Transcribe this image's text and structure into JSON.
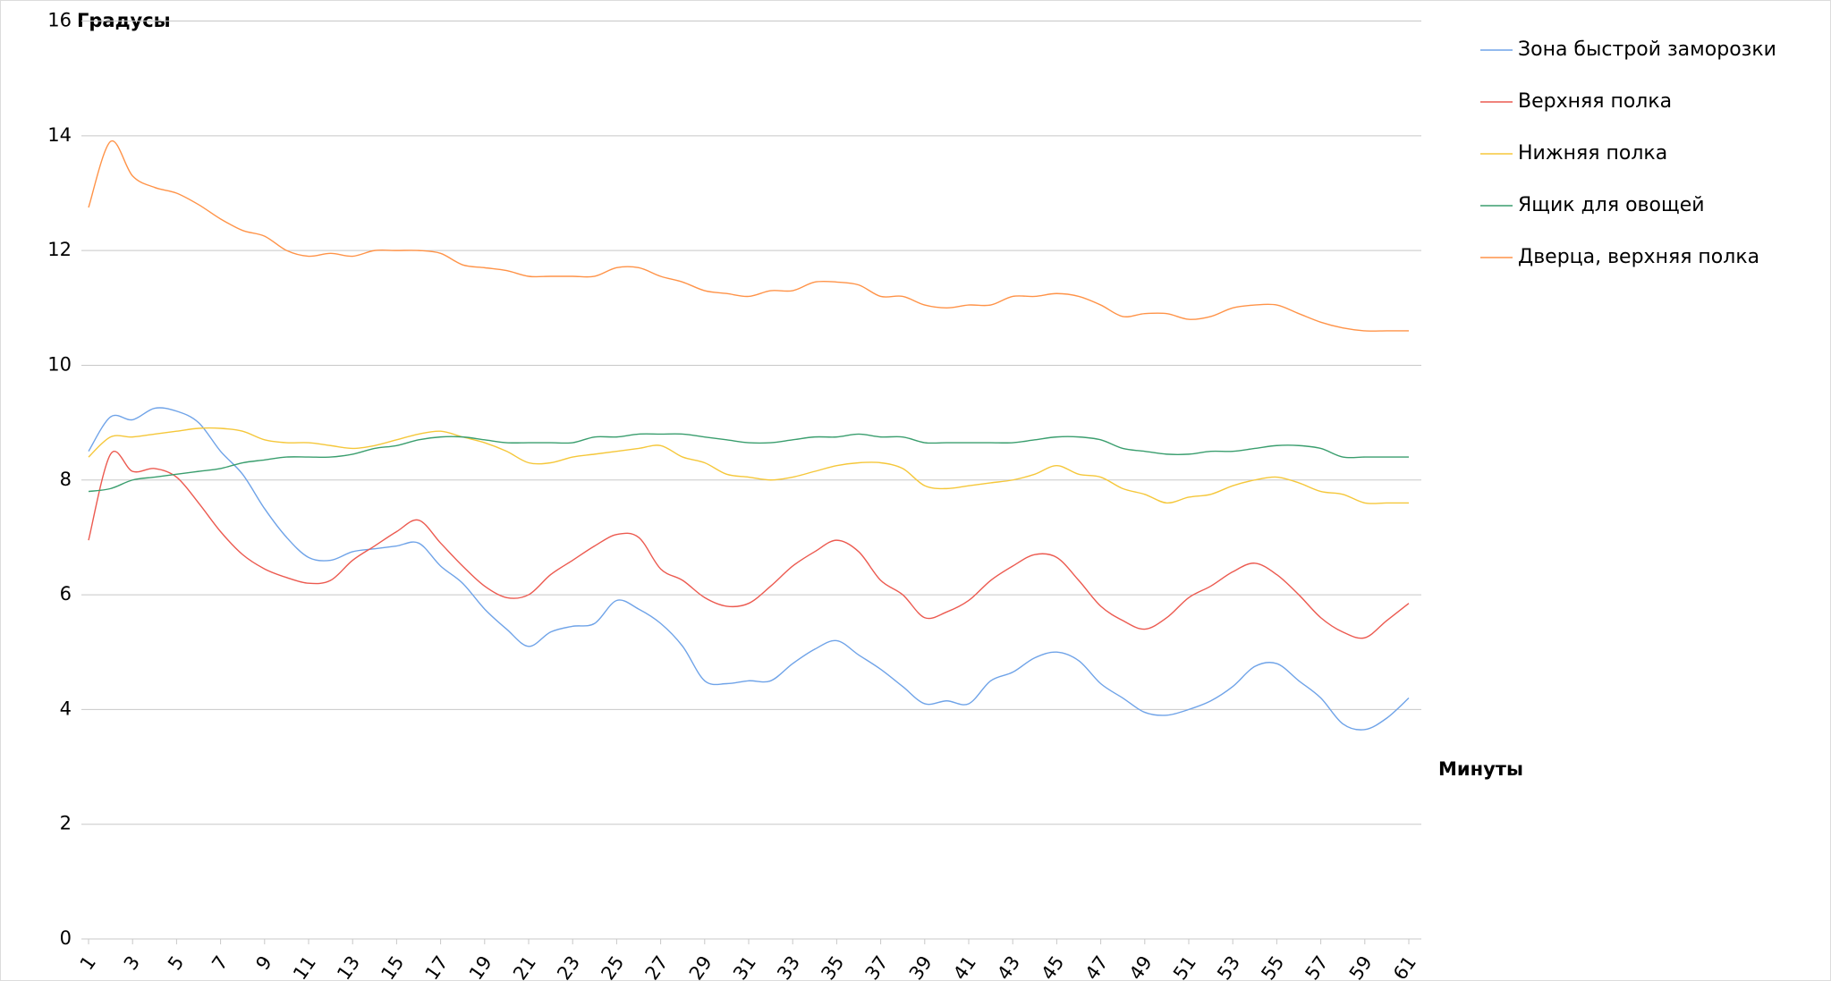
{
  "chart_data": {
    "type": "line",
    "y_label": "Градусы",
    "x_label": "Минуты",
    "categories": [
      1,
      null,
      3,
      null,
      5,
      null,
      7,
      null,
      9,
      null,
      11,
      null,
      13,
      null,
      15,
      null,
      17,
      null,
      19,
      null,
      21,
      null,
      23,
      null,
      25,
      null,
      27,
      null,
      29,
      null,
      31,
      null,
      33,
      null,
      35,
      null,
      37,
      null,
      39,
      null,
      41,
      null,
      43,
      null,
      45,
      null,
      47,
      null,
      49,
      null,
      51,
      null,
      53,
      null,
      55,
      null,
      57,
      null,
      59,
      null,
      61
    ],
    "ylim": [
      0,
      16
    ],
    "yticks": [
      0,
      2,
      4,
      6,
      8,
      10,
      12,
      14,
      16
    ],
    "grid": true,
    "legend": "right",
    "series": [
      {
        "name": "Зона быстрой заморозки",
        "color": "#6fa3e8",
        "values": [
          8.5,
          9.1,
          9.05,
          9.25,
          9.2,
          9.0,
          8.5,
          8.1,
          7.5,
          7.0,
          6.65,
          6.6,
          6.75,
          6.8,
          6.85,
          6.9,
          6.5,
          6.2,
          5.75,
          5.4,
          5.1,
          5.35,
          5.45,
          5.5,
          5.9,
          5.75,
          5.5,
          5.1,
          4.5,
          4.45,
          4.5,
          4.5,
          4.8,
          5.05,
          5.2,
          4.95,
          4.7,
          4.4,
          4.1,
          4.15,
          4.1,
          4.5,
          4.65,
          4.9,
          5.0,
          4.85,
          4.45,
          4.2,
          3.95,
          3.9,
          4.0,
          4.15,
          4.4,
          4.75,
          4.8,
          4.5,
          4.2,
          3.75,
          3.65,
          3.85,
          4.2
        ]
      },
      {
        "name": "Верхняя полка",
        "color": "#ec5a50",
        "values": [
          6.95,
          8.45,
          8.15,
          8.2,
          8.05,
          7.6,
          7.1,
          6.7,
          6.45,
          6.3,
          6.2,
          6.25,
          6.6,
          6.85,
          7.1,
          7.3,
          6.9,
          6.5,
          6.15,
          5.95,
          6.0,
          6.35,
          6.6,
          6.85,
          7.05,
          7.0,
          6.45,
          6.25,
          5.95,
          5.8,
          5.85,
          6.15,
          6.5,
          6.75,
          6.95,
          6.75,
          6.25,
          6.0,
          5.6,
          5.7,
          5.9,
          6.25,
          6.5,
          6.7,
          6.65,
          6.25,
          5.8,
          5.55,
          5.4,
          5.6,
          5.95,
          6.15,
          6.4,
          6.55,
          6.35,
          6.0,
          5.6,
          5.35,
          5.25,
          5.55,
          5.85
        ]
      },
      {
        "name": "Нижняя полка",
        "color": "#f5c73a",
        "values": [
          8.4,
          8.75,
          8.75,
          8.8,
          8.85,
          8.9,
          8.9,
          8.85,
          8.7,
          8.65,
          8.65,
          8.6,
          8.55,
          8.6,
          8.7,
          8.8,
          8.85,
          8.75,
          8.65,
          8.5,
          8.3,
          8.3,
          8.4,
          8.45,
          8.5,
          8.55,
          8.6,
          8.4,
          8.3,
          8.1,
          8.05,
          8.0,
          8.05,
          8.15,
          8.25,
          8.3,
          8.3,
          8.2,
          7.9,
          7.85,
          7.9,
          7.95,
          8.0,
          8.1,
          8.25,
          8.1,
          8.05,
          7.85,
          7.75,
          7.6,
          7.7,
          7.75,
          7.9,
          8.0,
          8.05,
          7.95,
          7.8,
          7.75,
          7.6,
          7.6,
          7.6
        ]
      },
      {
        "name": "Ящик для овощей",
        "color": "#3a9e6e",
        "values": [
          7.8,
          7.85,
          8.0,
          8.05,
          8.1,
          8.15,
          8.2,
          8.3,
          8.35,
          8.4,
          8.4,
          8.4,
          8.45,
          8.55,
          8.6,
          8.7,
          8.75,
          8.75,
          8.7,
          8.65,
          8.65,
          8.65,
          8.65,
          8.75,
          8.75,
          8.8,
          8.8,
          8.8,
          8.75,
          8.7,
          8.65,
          8.65,
          8.7,
          8.75,
          8.75,
          8.8,
          8.75,
          8.75,
          8.65,
          8.65,
          8.65,
          8.65,
          8.65,
          8.7,
          8.75,
          8.75,
          8.7,
          8.55,
          8.5,
          8.45,
          8.45,
          8.5,
          8.5,
          8.55,
          8.6,
          8.6,
          8.55,
          8.4,
          8.4,
          8.4,
          8.4
        ]
      },
      {
        "name": "Дверца, верхняя полка",
        "color": "#ff9348",
        "values": [
          12.75,
          13.9,
          13.3,
          13.1,
          13.0,
          12.8,
          12.55,
          12.35,
          12.25,
          12.0,
          11.9,
          11.95,
          11.9,
          12.0,
          12.0,
          12.0,
          11.95,
          11.75,
          11.7,
          11.65,
          11.55,
          11.55,
          11.55,
          11.55,
          11.7,
          11.7,
          11.55,
          11.45,
          11.3,
          11.25,
          11.2,
          11.3,
          11.3,
          11.45,
          11.45,
          11.4,
          11.2,
          11.2,
          11.05,
          11.0,
          11.05,
          11.05,
          11.2,
          11.2,
          11.25,
          11.2,
          11.05,
          10.85,
          10.9,
          10.9,
          10.8,
          10.85,
          11.0,
          11.05,
          11.05,
          10.9,
          10.75,
          10.65,
          10.6,
          10.6,
          10.6
        ]
      }
    ]
  }
}
